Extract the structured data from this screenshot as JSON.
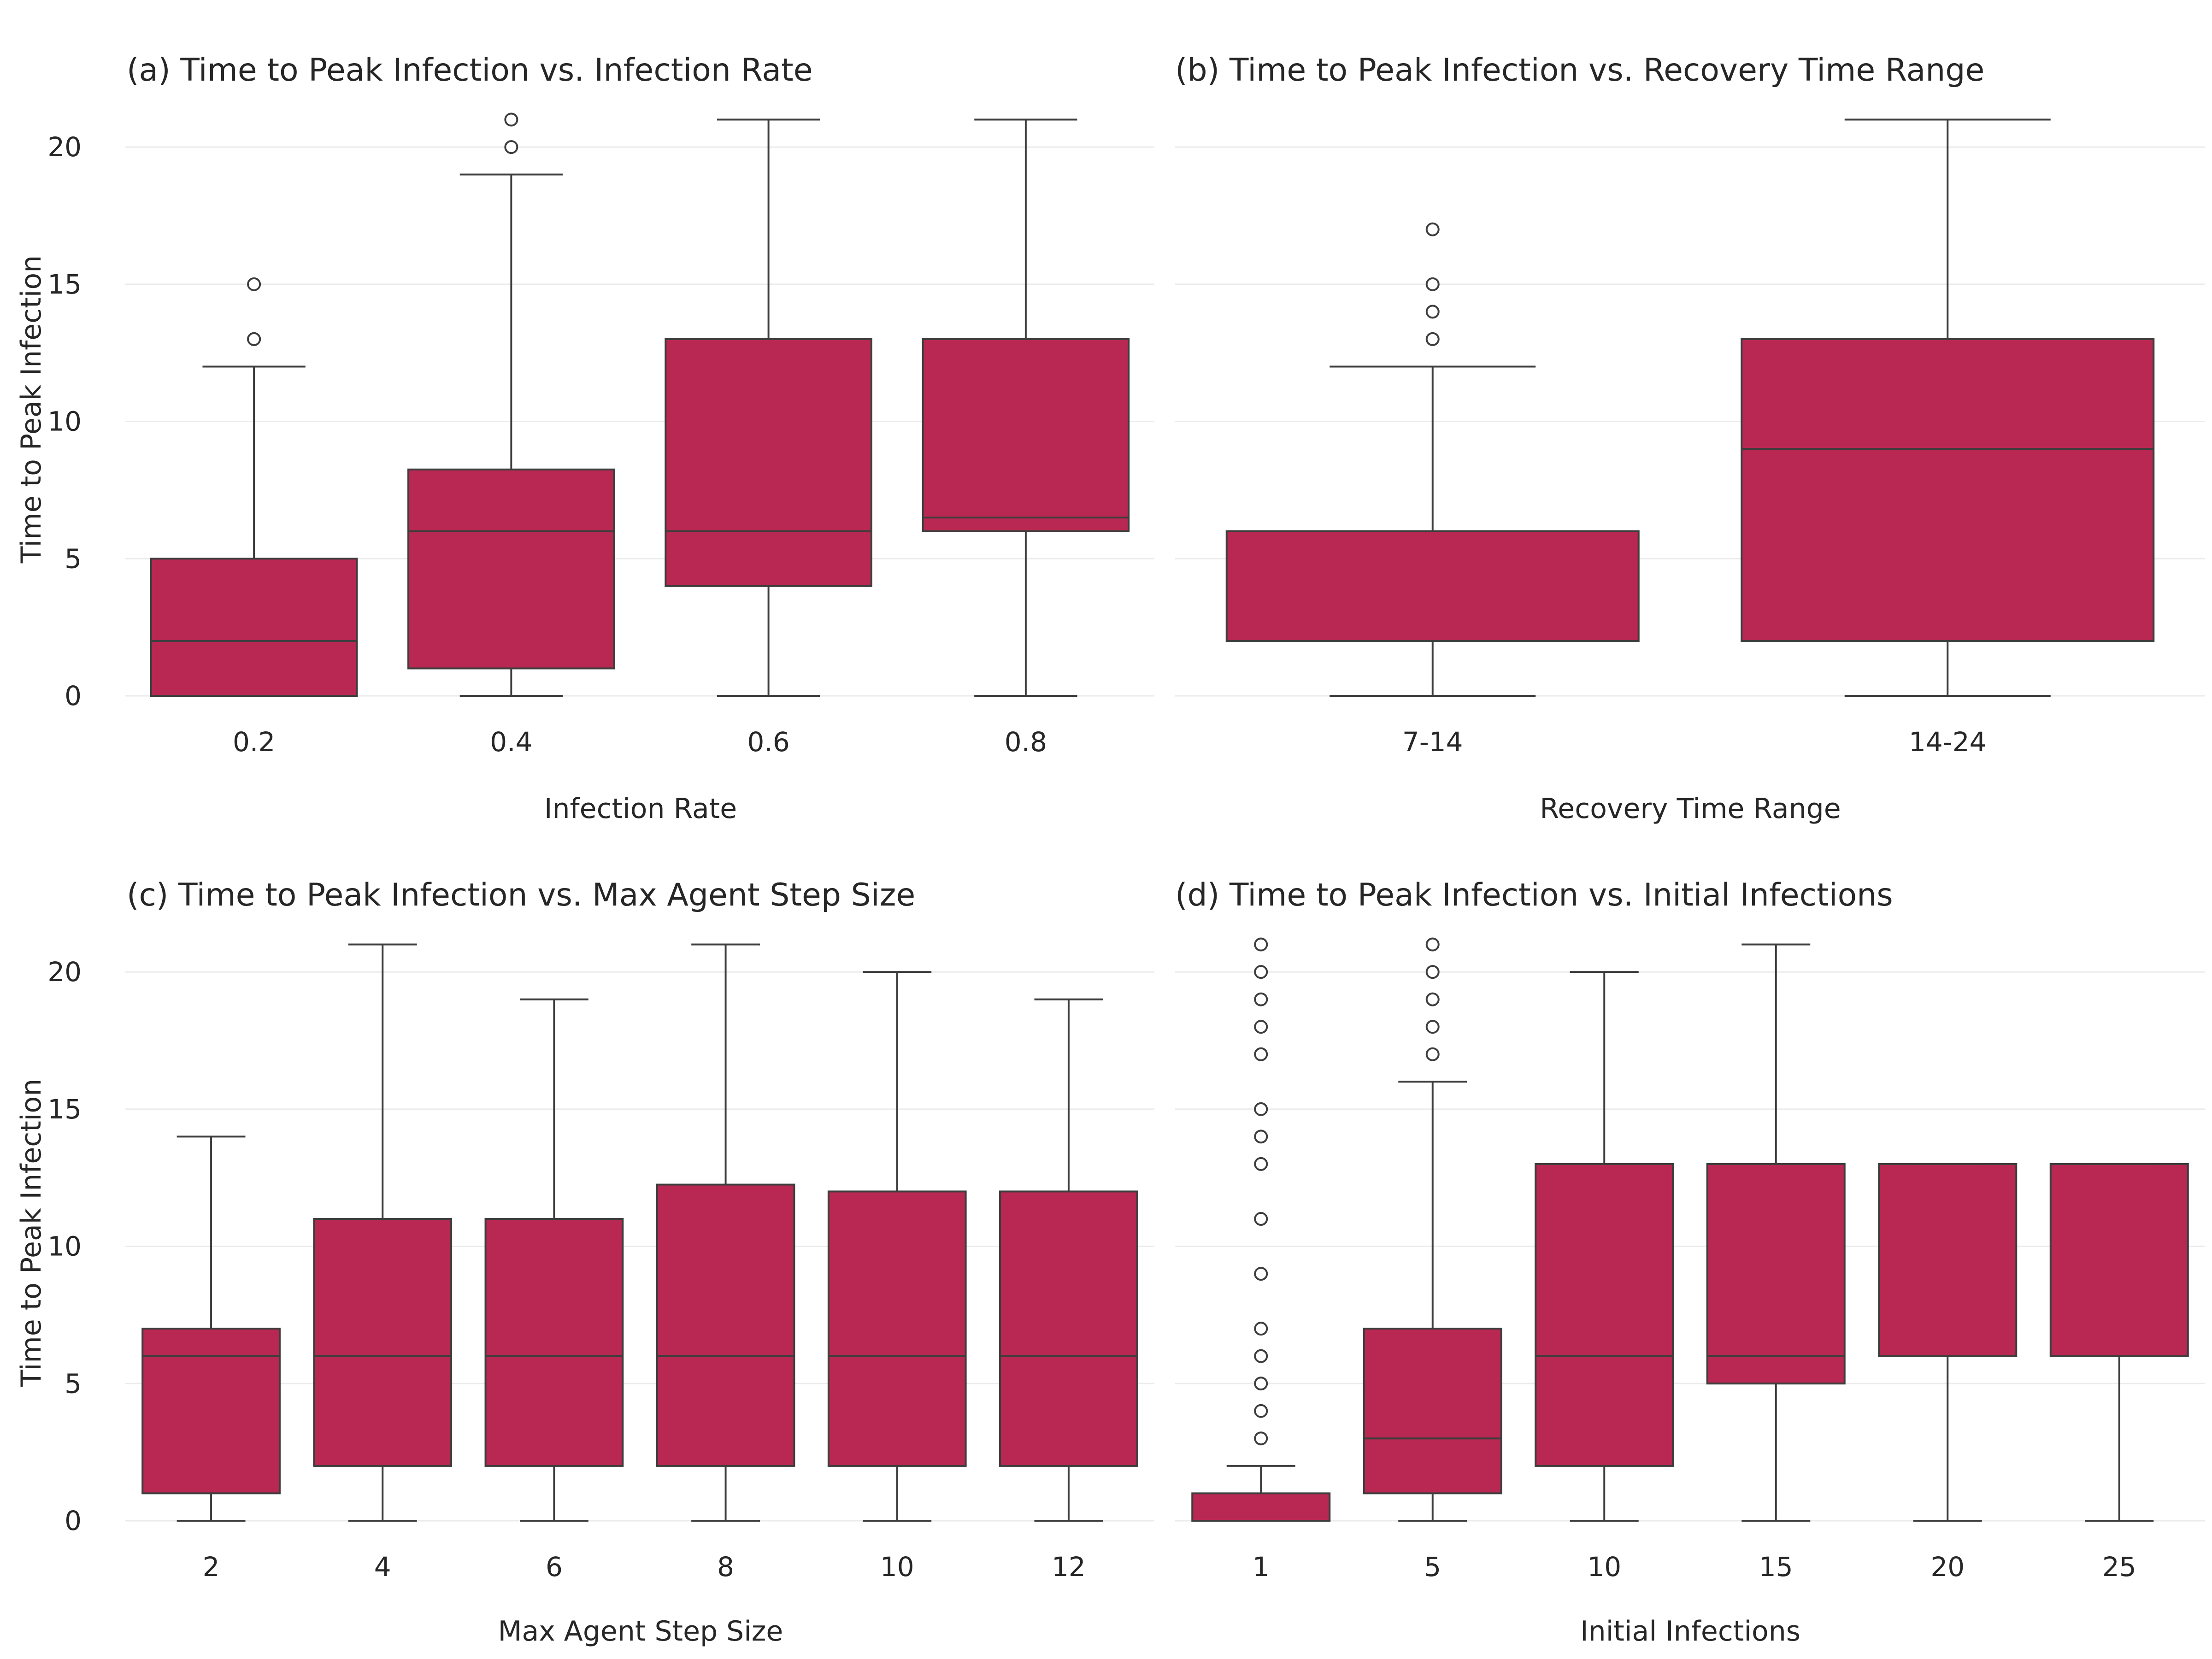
{
  "chart_data": [
    {
      "type": "box",
      "title": "(a) Time to Peak Infection vs. Infection Rate",
      "xlabel": "Infection Rate",
      "ylabel": "Time to Peak Infection",
      "ylim": [
        0,
        22
      ],
      "yticks": [
        0,
        5,
        10,
        15,
        20
      ],
      "grid": "horizontal",
      "color": "#b92852",
      "categories": [
        "0.2",
        "0.4",
        "0.6",
        "0.8"
      ],
      "boxes": [
        {
          "min": 0,
          "q1": 0,
          "median": 2,
          "q3": 5,
          "max": 12,
          "outliers": [
            13,
            13,
            15
          ]
        },
        {
          "min": 0,
          "q1": 1,
          "median": 6,
          "q3": 8.25,
          "max": 19,
          "outliers": [
            20,
            21
          ]
        },
        {
          "min": 0,
          "q1": 4,
          "median": 6,
          "q3": 13,
          "max": 21,
          "outliers": []
        },
        {
          "min": 0,
          "q1": 6,
          "median": 6.5,
          "q3": 13,
          "max": 21,
          "outliers": []
        }
      ]
    },
    {
      "type": "box",
      "title": "(b) Time to Peak Infection vs. Recovery Time Range",
      "xlabel": "Recovery Time Range",
      "ylabel": "",
      "ylim": [
        0,
        22
      ],
      "yticks": [],
      "grid": "horizontal",
      "color": "#b92852",
      "categories": [
        "7-14",
        "14-24"
      ],
      "boxes": [
        {
          "min": 0,
          "q1": 2,
          "median": 6,
          "q3": 6,
          "max": 12,
          "outliers": [
            13,
            14,
            15,
            17
          ]
        },
        {
          "min": 0,
          "q1": 2,
          "median": 9,
          "q3": 13,
          "max": 21,
          "outliers": []
        }
      ]
    },
    {
      "type": "box",
      "title": "(c) Time to Peak Infection vs. Max Agent Step Size",
      "xlabel": "Max Agent Step Size",
      "ylabel": "Time to Peak Infection",
      "ylim": [
        0,
        22
      ],
      "yticks": [
        0,
        5,
        10,
        15,
        20
      ],
      "grid": "horizontal",
      "color": "#b92852",
      "categories": [
        "2",
        "4",
        "6",
        "8",
        "10",
        "12"
      ],
      "boxes": [
        {
          "min": 0,
          "q1": 1,
          "median": 6,
          "q3": 7,
          "max": 14,
          "outliers": []
        },
        {
          "min": 0,
          "q1": 2,
          "median": 6,
          "q3": 11,
          "max": 21,
          "outliers": []
        },
        {
          "min": 0,
          "q1": 2,
          "median": 6,
          "q3": 11,
          "max": 19,
          "outliers": []
        },
        {
          "min": 0,
          "q1": 2,
          "median": 6,
          "q3": 12.25,
          "max": 21,
          "outliers": []
        },
        {
          "min": 0,
          "q1": 2,
          "median": 6,
          "q3": 12,
          "max": 20,
          "outliers": []
        },
        {
          "min": 0,
          "q1": 2,
          "median": 6,
          "q3": 12,
          "max": 19,
          "outliers": []
        }
      ]
    },
    {
      "type": "box",
      "title": "(d) Time to Peak Infection vs. Initial Infections",
      "xlabel": "Initial Infections",
      "ylabel": "",
      "ylim": [
        0,
        22
      ],
      "yticks": [],
      "grid": "horizontal",
      "color": "#b92852",
      "categories": [
        "1",
        "5",
        "10",
        "15",
        "20",
        "25"
      ],
      "boxes": [
        {
          "min": 0,
          "q1": 0,
          "median": 0,
          "q3": 1,
          "max": 2,
          "outliers": [
            3,
            4,
            5,
            6,
            7,
            9,
            11,
            13,
            14,
            15,
            17,
            18,
            19,
            20,
            21
          ]
        },
        {
          "min": 0,
          "q1": 1,
          "median": 3,
          "q3": 7,
          "max": 16,
          "outliers": [
            17,
            18,
            19,
            20,
            21
          ]
        },
        {
          "min": 0,
          "q1": 2,
          "median": 6,
          "q3": 13,
          "max": 20,
          "outliers": []
        },
        {
          "min": 0,
          "q1": 5,
          "median": 6,
          "q3": 13,
          "max": 21,
          "outliers": []
        },
        {
          "min": 0,
          "q1": 6,
          "median": 6,
          "q3": 13,
          "max": 13,
          "outliers": []
        },
        {
          "min": 0,
          "q1": 6,
          "median": 6,
          "q3": 13,
          "max": 13,
          "outliers": []
        }
      ]
    }
  ]
}
